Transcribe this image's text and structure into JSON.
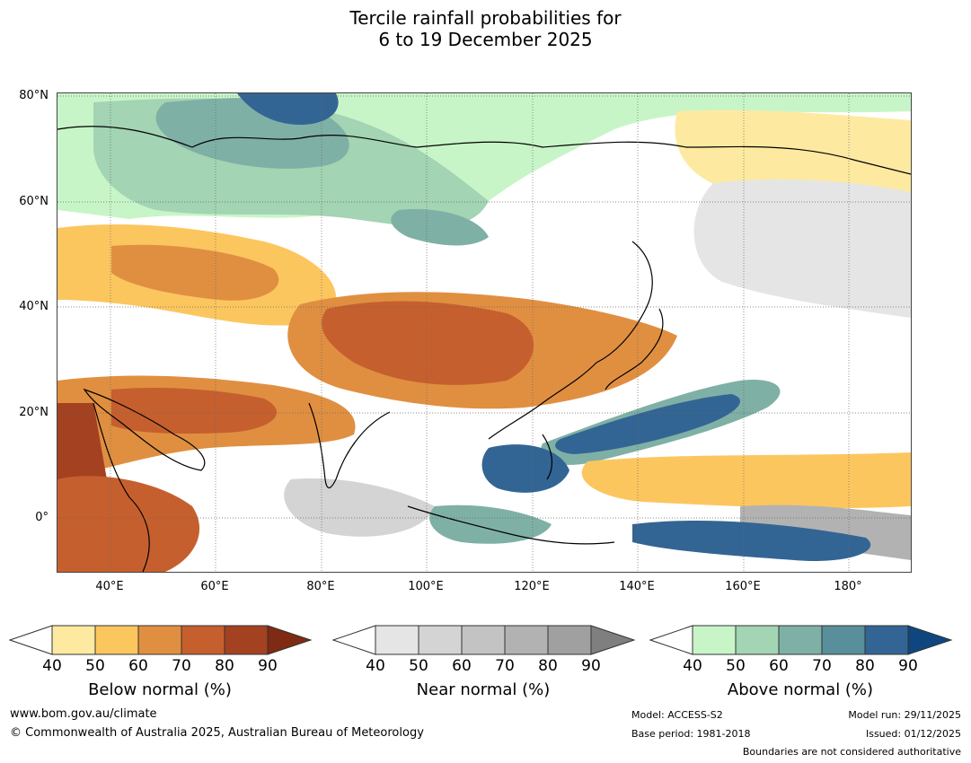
{
  "header": {
    "title_line1": "Tercile rainfall probabilities for",
    "title_line2": "6 to 19 December 2025"
  },
  "map": {
    "lat_labels": [
      "80°N",
      "60°N",
      "40°N",
      "20°N",
      "0°"
    ],
    "lon_labels": [
      "40°E",
      "60°E",
      "80°E",
      "100°E",
      "120°E",
      "140°E",
      "160°E",
      "180°"
    ]
  },
  "colorbars": [
    {
      "label": "Below normal (%)",
      "ticks": [
        "40",
        "50",
        "60",
        "70",
        "80",
        "90"
      ],
      "colors": [
        "#fdeaa0",
        "#fcc65f",
        "#e08f41",
        "#c65f2e",
        "#a44120",
        "#7f2a12"
      ]
    },
    {
      "label": "Near normal (%)",
      "ticks": [
        "40",
        "50",
        "60",
        "70",
        "80",
        "90"
      ],
      "colors": [
        "#e5e5e5",
        "#d4d4d4",
        "#c3c3c3",
        "#b2b2b2",
        "#a0a0a0",
        "#7f7f7f"
      ]
    },
    {
      "label": "Above normal (%)",
      "ticks": [
        "40",
        "50",
        "60",
        "70",
        "80",
        "90"
      ],
      "colors": [
        "#c8f5c8",
        "#a3d4b3",
        "#7fb0a6",
        "#598f9b",
        "#336594",
        "#0f467f"
      ]
    }
  ],
  "footer": {
    "url": "www.bom.gov.au/climate",
    "copyright": "© Commonwealth of Australia 2025, Australian Bureau of Meteorology",
    "model": "Model: ACCESS-S2",
    "base_period": "Base period: 1981-2018",
    "model_run": "Model run: 29/11/2025",
    "issued": "Issued: 01/12/2025",
    "boundaries_note": "Boundaries are not considered authoritative"
  }
}
